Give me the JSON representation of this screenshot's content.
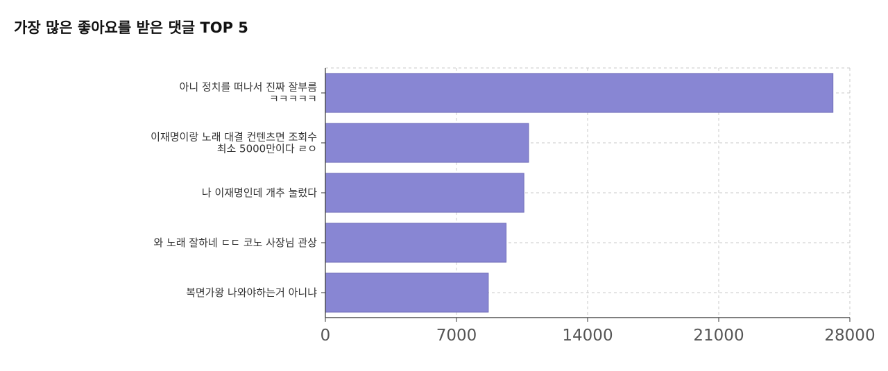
{
  "chart_data": {
    "type": "bar",
    "orientation": "horizontal",
    "title": "가장 많은 좋아요를 받은 댓글 TOP 5",
    "categories": [
      [
        "아니 정치를 떠나서 진짜 잘부름",
        "ㅋㅋㅋㅋㅋ"
      ],
      [
        "이재명이랑 노래 대결 컨텐츠면 조회수",
        "최소 5000만이다 ㄹㅇ"
      ],
      [
        "나 이재명인데 개추 눌렀다"
      ],
      [
        "와 노래 잘하네 ㄷㄷ 코노 사장님 관상"
      ],
      [
        "복면가왕 나와야하는거 아니냐"
      ]
    ],
    "values": [
      27100,
      10850,
      10600,
      9650,
      8700
    ],
    "xlim": [
      0,
      28000
    ],
    "xticks": [
      "0",
      "7000",
      "14000",
      "21000",
      "28000"
    ],
    "xlabel": "",
    "ylabel": "",
    "grid": true,
    "bar_color": "#8886d3",
    "bar_stroke": "#6f6db8"
  }
}
